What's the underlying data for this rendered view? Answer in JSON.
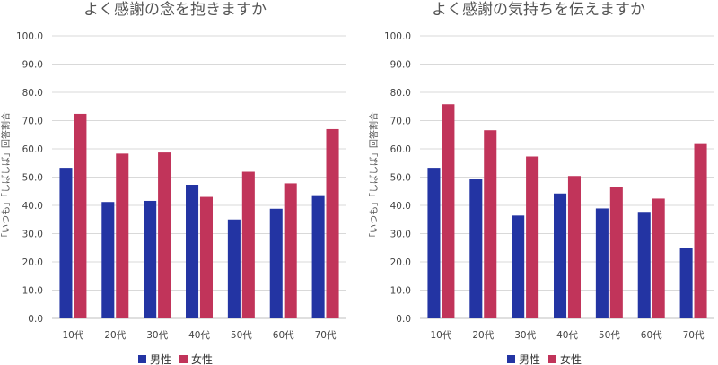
{
  "colors": {
    "male": "#2334a3",
    "female": "#c1345a"
  },
  "legend": {
    "male": "男性",
    "female": "女性"
  },
  "chart_data": [
    {
      "type": "bar",
      "title": "よく感謝の念を抱きますか",
      "ylabel": "「いつも」「しばしば」回答割合",
      "xlabel": "",
      "ylim": [
        0,
        100
      ],
      "ytick_labels": [
        "0.0",
        "10.0",
        "20.0",
        "30.0",
        "40.0",
        "50.0",
        "60.0",
        "70.0",
        "80.0",
        "90.0",
        "100.0"
      ],
      "categories": [
        "10代",
        "20代",
        "30代",
        "40代",
        "50代",
        "60代",
        "70代"
      ],
      "series": [
        {
          "name": "男性",
          "values": [
            53.3,
            41.2,
            41.6,
            47.3,
            35.0,
            38.8,
            43.6
          ]
        },
        {
          "name": "女性",
          "values": [
            72.4,
            58.3,
            58.7,
            43.0,
            51.9,
            47.8,
            67.0
          ]
        }
      ],
      "grid": true,
      "legend_position": "bottom"
    },
    {
      "type": "bar",
      "title": "よく感謝の気持ちを伝えますか",
      "ylabel": "「いつも」「しばしば」回答割合",
      "xlabel": "",
      "ylim": [
        0,
        100
      ],
      "ytick_labels": [
        "0.0",
        "10.0",
        "20.0",
        "30.0",
        "40.0",
        "50.0",
        "60.0",
        "70.0",
        "80.0",
        "90.0",
        "100.0"
      ],
      "categories": [
        "10代",
        "20代",
        "30代",
        "40代",
        "50代",
        "60代",
        "70代"
      ],
      "series": [
        {
          "name": "男性",
          "values": [
            53.3,
            49.2,
            36.4,
            44.2,
            38.9,
            37.7,
            24.9
          ]
        },
        {
          "name": "女性",
          "values": [
            75.8,
            66.6,
            57.3,
            50.4,
            46.6,
            42.4,
            61.7
          ]
        }
      ],
      "grid": true,
      "legend_position": "bottom"
    }
  ]
}
